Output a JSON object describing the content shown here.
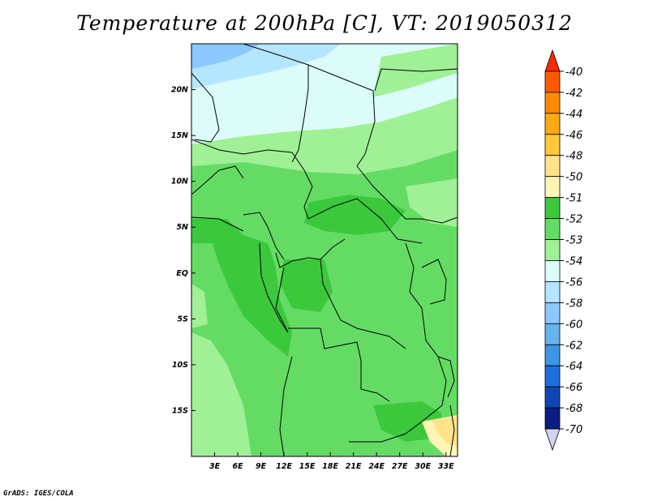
{
  "title": "Temperature at 200hPa [C], VT: 2019050312",
  "footer": "GrADS: IGES/COLA",
  "map": {
    "lon_labels": [
      "3E",
      "6E",
      "9E",
      "12E",
      "15E",
      "18E",
      "21E",
      "24E",
      "27E",
      "30E",
      "33E"
    ],
    "lon_values": [
      3,
      6,
      9,
      12,
      15,
      18,
      21,
      24,
      27,
      30,
      33
    ],
    "lat_labels": [
      "20N",
      "15N",
      "10N",
      "5N",
      "EQ",
      "5S",
      "10S",
      "15S"
    ],
    "lat_values": [
      20,
      15,
      10,
      5,
      0,
      -5,
      -10,
      -15
    ],
    "lon_range": [
      0,
      34.5
    ],
    "lat_range": [
      -20,
      25
    ]
  },
  "colorbar": {
    "labels": [
      "-40",
      "-42",
      "-44",
      "-46",
      "-48",
      "-50",
      "-51",
      "-52",
      "-53",
      "-54",
      "-56",
      "-58",
      "-60",
      "-62",
      "-64",
      "-66",
      "-68",
      "-70"
    ],
    "colors": [
      "#ff2a00",
      "#ff5a00",
      "#ff8a00",
      "#ffaa14",
      "#ffc83c",
      "#ffe38a",
      "#fff5b4",
      "#3cc83c",
      "#64dc64",
      "#a0f096",
      "#dcfcfc",
      "#b4e6ff",
      "#8cc8ff",
      "#64b4f0",
      "#3c96e6",
      "#1e6edc",
      "#1046b4",
      "#0a1e82",
      "#d2d2f5"
    ]
  }
}
